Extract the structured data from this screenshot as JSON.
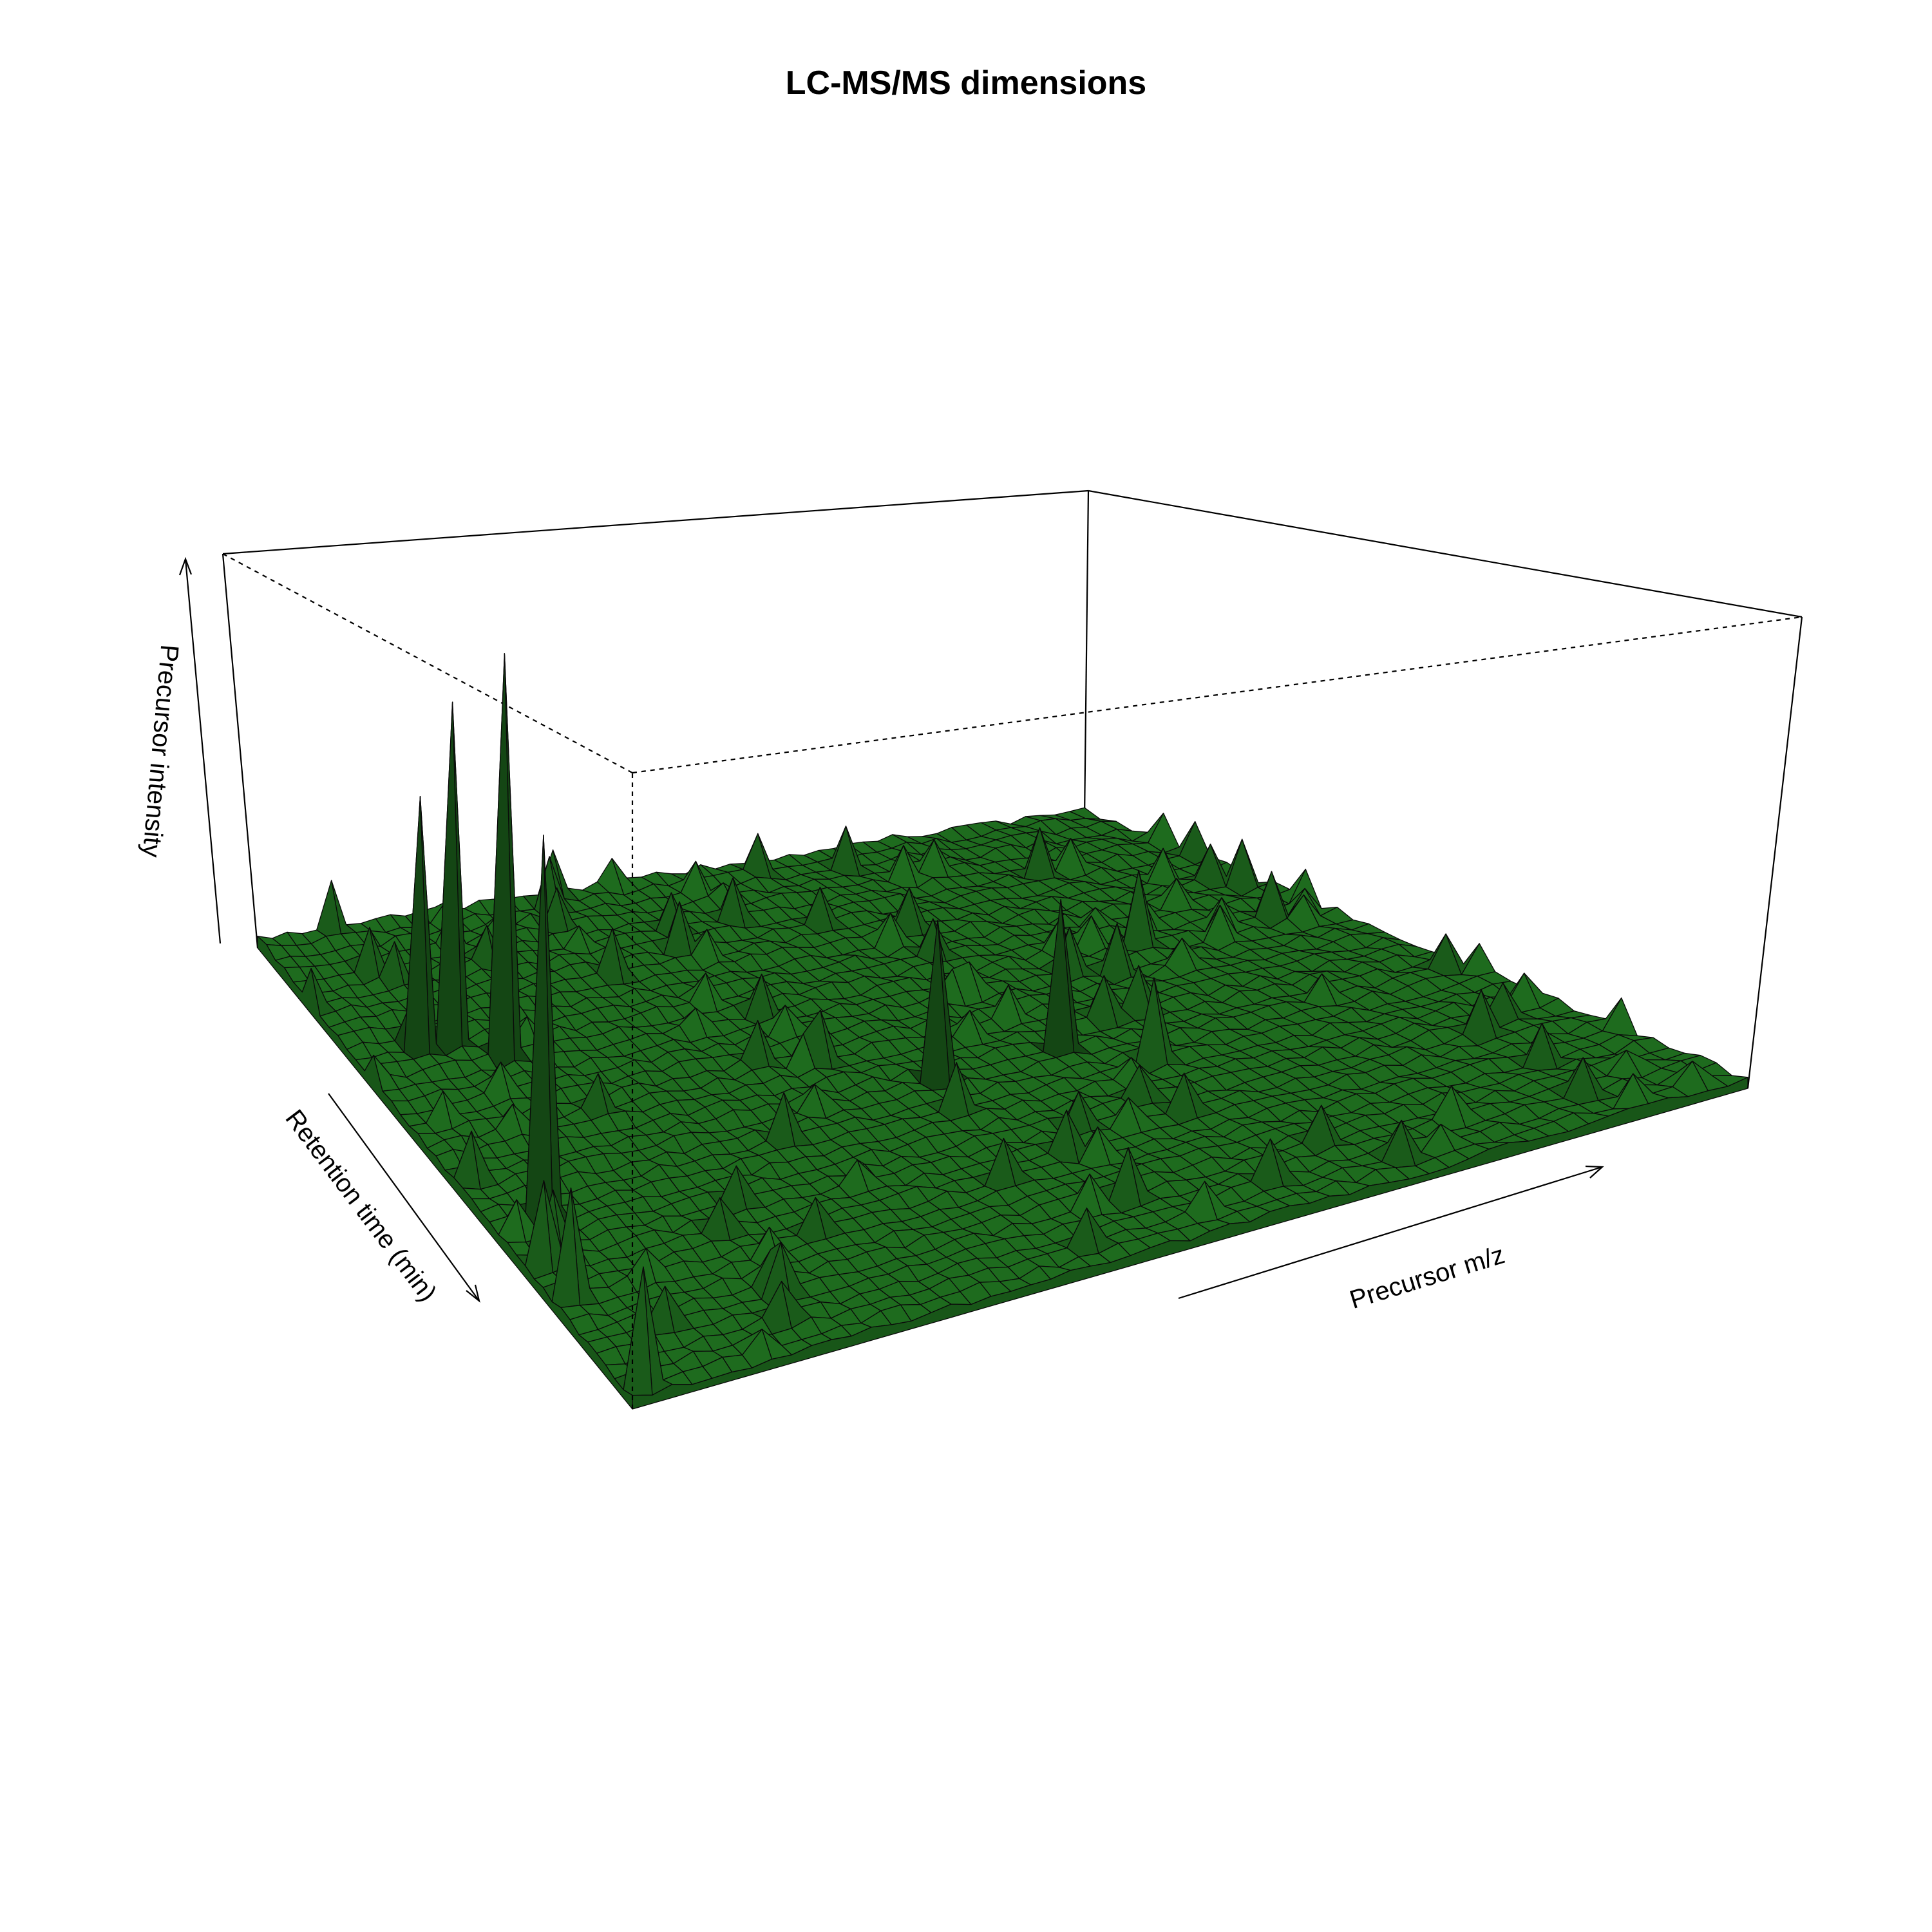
{
  "chart_data": {
    "type": "surface",
    "title": "LC-MS/MS dimensions",
    "xlabel": "Retention time (min)",
    "ylabel": "Precursor m/z",
    "zlabel": "Precursor intensity",
    "surface_color": "#1e6b1e",
    "box": true,
    "grid": false,
    "tick_labels": false,
    "peaks": [
      {
        "rt": 0.62,
        "mz": 0.05,
        "intensity": 0.92
      },
      {
        "rt": 0.32,
        "mz": 0.14,
        "intensity": 0.98
      },
      {
        "rt": 0.25,
        "mz": 0.1,
        "intensity": 0.83
      },
      {
        "rt": 0.27,
        "mz": 0.08,
        "intensity": 0.62
      },
      {
        "rt": 0.98,
        "mz": 0.01,
        "intensity": 0.3
      },
      {
        "rt": 0.78,
        "mz": 0.01,
        "intensity": 0.28
      },
      {
        "rt": 0.72,
        "mz": 0.01,
        "intensity": 0.22
      },
      {
        "rt": 0.68,
        "mz": 0.03,
        "intensity": 0.16
      },
      {
        "rt": 0.55,
        "mz": 0.48,
        "intensity": 0.4
      },
      {
        "rt": 0.55,
        "mz": 0.6,
        "intensity": 0.38
      },
      {
        "rt": 0.62,
        "mz": 0.66,
        "intensity": 0.22
      },
      {
        "rt": 0.35,
        "mz": 0.8,
        "intensity": 0.2
      },
      {
        "rt": 0.35,
        "mz": 0.95,
        "intensity": 0.13
      },
      {
        "rt": 0.05,
        "mz": 0.68,
        "intensity": 0.12
      }
    ]
  }
}
